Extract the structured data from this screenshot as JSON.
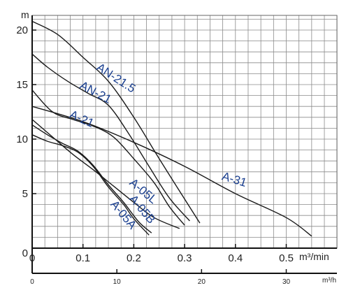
{
  "chart_data": {
    "type": "line",
    "title": "",
    "y_unit": "m",
    "x_unit_primary": "m³/min",
    "x_unit_secondary": "m³/h",
    "x_ticks_primary": [
      "0",
      "0.1",
      "0.2",
      "0.3",
      "0.4",
      "0.5"
    ],
    "x_ticks_secondary": [
      "0",
      "10",
      "20",
      "30"
    ],
    "y_ticks": [
      "0",
      "5",
      "10",
      "15",
      "20"
    ],
    "xlim": [
      0,
      0.6
    ],
    "ylim": [
      0,
      21
    ],
    "grid": true,
    "legend": "none",
    "series": [
      {
        "name": "AN-21.5",
        "points": [
          [
            0,
            20.8
          ],
          [
            0.05,
            19.6
          ],
          [
            0.1,
            17.5
          ],
          [
            0.15,
            15.3
          ],
          [
            0.2,
            12.0
          ],
          [
            0.25,
            8.2
          ],
          [
            0.3,
            4.5
          ],
          [
            0.33,
            2.3
          ]
        ]
      },
      {
        "name": "AN-21",
        "points": [
          [
            0,
            17.8
          ],
          [
            0.03,
            16.6
          ],
          [
            0.07,
            15.3
          ],
          [
            0.11,
            14.2
          ],
          [
            0.15,
            13.1
          ],
          [
            0.19,
            10.5
          ],
          [
            0.23,
            7.5
          ],
          [
            0.27,
            4.6
          ],
          [
            0.31,
            2.5
          ]
        ]
      },
      {
        "name": "A-21",
        "points": [
          [
            0,
            14.5
          ],
          [
            0.04,
            12.5
          ],
          [
            0.08,
            11.8
          ],
          [
            0.12,
            11.2
          ],
          [
            0.16,
            10.2
          ],
          [
            0.2,
            8.2
          ],
          [
            0.24,
            6.0
          ],
          [
            0.27,
            3.8
          ],
          [
            0.3,
            2.1
          ]
        ]
      },
      {
        "name": "A-31",
        "points": [
          [
            0,
            13.0
          ],
          [
            0.1,
            11.6
          ],
          [
            0.2,
            9.7
          ],
          [
            0.3,
            7.5
          ],
          [
            0.4,
            5.0
          ],
          [
            0.5,
            2.8
          ],
          [
            0.55,
            1.1
          ]
        ]
      },
      {
        "name": "A-05L",
        "points": [
          [
            0,
            11.8
          ],
          [
            0.04,
            10.2
          ],
          [
            0.08,
            8.6
          ],
          [
            0.12,
            7.2
          ],
          [
            0.16,
            5.7
          ],
          [
            0.2,
            4.2
          ],
          [
            0.24,
            2.8
          ],
          [
            0.29,
            1.8
          ]
        ]
      },
      {
        "name": "A-05B",
        "points": [
          [
            0,
            11.3
          ],
          [
            0.03,
            10.4
          ],
          [
            0.06,
            9.6
          ],
          [
            0.09,
            8.9
          ],
          [
            0.12,
            7.6
          ],
          [
            0.15,
            5.8
          ],
          [
            0.18,
            4.2
          ],
          [
            0.21,
            2.4
          ],
          [
            0.235,
            1.4
          ]
        ]
      },
      {
        "name": "A-05A",
        "points": [
          [
            0,
            10.4
          ],
          [
            0.03,
            9.8
          ],
          [
            0.06,
            9.4
          ],
          [
            0.09,
            8.8
          ],
          [
            0.12,
            7.5
          ],
          [
            0.15,
            5.6
          ],
          [
            0.18,
            4.0
          ],
          [
            0.2,
            2.7
          ],
          [
            0.23,
            1.2
          ]
        ]
      }
    ]
  }
}
